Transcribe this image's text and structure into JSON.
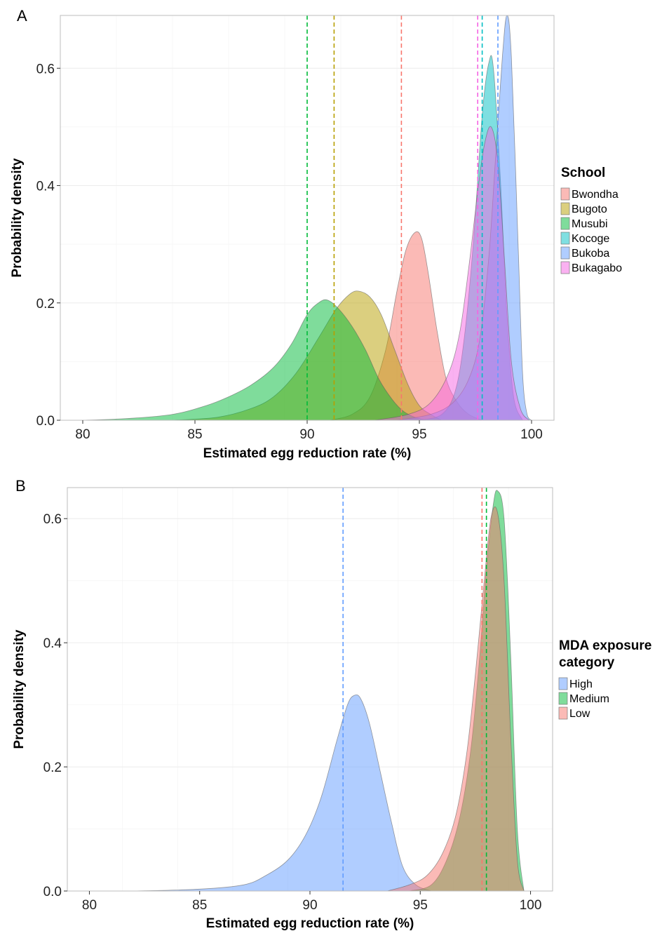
{
  "chart_data": [
    {
      "panel_label": "A",
      "type": "area",
      "subtype": "density",
      "xlabel": "Estimated egg reduction rate (%)",
      "ylabel": "Probability density",
      "xlim": [
        79,
        101
      ],
      "ylim": [
        0,
        0.69
      ],
      "x_ticks": [
        80,
        85,
        90,
        95,
        100
      ],
      "y_ticks": [
        0.0,
        0.2,
        0.4,
        0.6
      ],
      "y_tick_labels": [
        "0.0",
        "0.2",
        "0.4",
        "0.6"
      ],
      "grid": true,
      "legend": {
        "title": "School",
        "title_lines": [
          "School"
        ],
        "position": "right"
      },
      "series": [
        {
          "name": "Bwondha",
          "color": "#F8766D",
          "mean_line": 94.2,
          "x": [
            91.0,
            92.0,
            92.8,
            93.5,
            94.0,
            94.4,
            94.8,
            95.1,
            95.4,
            95.8,
            96.2,
            96.7,
            97.2,
            97.8
          ],
          "values": [
            0.0,
            0.01,
            0.04,
            0.12,
            0.22,
            0.29,
            0.32,
            0.31,
            0.25,
            0.15,
            0.07,
            0.03,
            0.01,
            0.0
          ]
        },
        {
          "name": "Bugoto",
          "color": "#B79F00",
          "mean_line": 91.2,
          "x": [
            84.0,
            86.0,
            87.5,
            88.5,
            89.5,
            90.5,
            91.3,
            91.9,
            92.3,
            92.8,
            93.3,
            93.9,
            94.5,
            95.0,
            95.5,
            96.0
          ],
          "values": [
            0.0,
            0.005,
            0.02,
            0.04,
            0.08,
            0.14,
            0.19,
            0.215,
            0.22,
            0.21,
            0.18,
            0.12,
            0.06,
            0.025,
            0.01,
            0.0
          ]
        },
        {
          "name": "Musubi",
          "color": "#00BA38",
          "mean_line": 90.0,
          "x": [
            80.0,
            82.0,
            84.0,
            85.5,
            86.5,
            87.5,
            88.5,
            89.3,
            90.0,
            90.5,
            90.9,
            91.4,
            92.0,
            92.6,
            93.2,
            93.8,
            94.3,
            94.8,
            95.3
          ],
          "values": [
            0.0,
            0.003,
            0.01,
            0.025,
            0.04,
            0.06,
            0.09,
            0.13,
            0.18,
            0.2,
            0.205,
            0.19,
            0.16,
            0.12,
            0.07,
            0.035,
            0.015,
            0.005,
            0.0
          ]
        },
        {
          "name": "Kocoge",
          "color": "#00BFC4",
          "mean_line": 97.8,
          "x": [
            95.0,
            96.0,
            96.6,
            97.0,
            97.4,
            97.8,
            98.1,
            98.3,
            98.6,
            98.9,
            99.2,
            99.6
          ],
          "values": [
            0.0,
            0.01,
            0.05,
            0.14,
            0.3,
            0.52,
            0.61,
            0.6,
            0.42,
            0.18,
            0.04,
            0.0
          ]
        },
        {
          "name": "Bukoba",
          "color": "#619CFF",
          "mean_line": 98.5,
          "x": [
            94.0,
            95.5,
            96.5,
            97.2,
            97.7,
            98.1,
            98.4,
            98.7,
            98.9,
            99.1,
            99.4,
            99.6,
            99.8,
            100.0
          ],
          "values": [
            0.0,
            0.01,
            0.03,
            0.07,
            0.14,
            0.28,
            0.45,
            0.62,
            0.69,
            0.62,
            0.3,
            0.08,
            0.01,
            0.0
          ]
        },
        {
          "name": "Bukagabo",
          "color": "#F564E3",
          "mean_line": 97.6,
          "x": [
            93.0,
            94.5,
            95.5,
            96.3,
            96.8,
            97.2,
            97.6,
            97.9,
            98.2,
            98.5,
            98.8,
            99.1,
            99.5,
            99.9
          ],
          "values": [
            0.0,
            0.01,
            0.03,
            0.08,
            0.15,
            0.26,
            0.39,
            0.47,
            0.5,
            0.44,
            0.27,
            0.1,
            0.02,
            0.0
          ]
        }
      ]
    },
    {
      "panel_label": "B",
      "type": "area",
      "subtype": "density",
      "xlabel": "Estimated egg reduction rate (%)",
      "ylabel": "Probability density",
      "xlim": [
        79,
        101
      ],
      "ylim": [
        0,
        0.65
      ],
      "x_ticks": [
        80,
        85,
        90,
        95,
        100
      ],
      "y_ticks": [
        0.0,
        0.2,
        0.4,
        0.6
      ],
      "y_tick_labels": [
        "0.0",
        "0.2",
        "0.4",
        "0.6"
      ],
      "grid": true,
      "legend": {
        "title": "MDA exposure category",
        "title_lines": [
          "MDA exposure",
          "category"
        ],
        "position": "right"
      },
      "series": [
        {
          "name": "High",
          "color": "#619CFF",
          "mean_line": 91.5,
          "x": [
            82.0,
            85.0,
            87.0,
            88.0,
            89.0,
            89.8,
            90.5,
            91.2,
            91.7,
            92.0,
            92.3,
            92.7,
            93.2,
            93.7,
            94.2,
            94.8,
            95.5
          ],
          "values": [
            0.0,
            0.003,
            0.01,
            0.025,
            0.05,
            0.09,
            0.15,
            0.24,
            0.3,
            0.315,
            0.31,
            0.27,
            0.19,
            0.11,
            0.04,
            0.01,
            0.0
          ]
        },
        {
          "name": "Medium",
          "color": "#00BA38",
          "mean_line": 98.0,
          "x": [
            94.5,
            95.5,
            96.2,
            96.8,
            97.3,
            97.7,
            98.0,
            98.3,
            98.5,
            98.8,
            99.1,
            99.4,
            99.7
          ],
          "values": [
            0.0,
            0.01,
            0.05,
            0.12,
            0.23,
            0.38,
            0.52,
            0.62,
            0.645,
            0.6,
            0.38,
            0.1,
            0.0
          ]
        },
        {
          "name": "Low",
          "color": "#F8766D",
          "mean_line": 97.8,
          "x": [
            93.5,
            94.5,
            95.3,
            96.0,
            96.6,
            97.1,
            97.5,
            97.9,
            98.2,
            98.5,
            98.8,
            99.1,
            99.4,
            99.7
          ],
          "values": [
            0.0,
            0.01,
            0.025,
            0.06,
            0.12,
            0.22,
            0.35,
            0.5,
            0.6,
            0.61,
            0.5,
            0.25,
            0.05,
            0.0
          ]
        }
      ]
    }
  ]
}
